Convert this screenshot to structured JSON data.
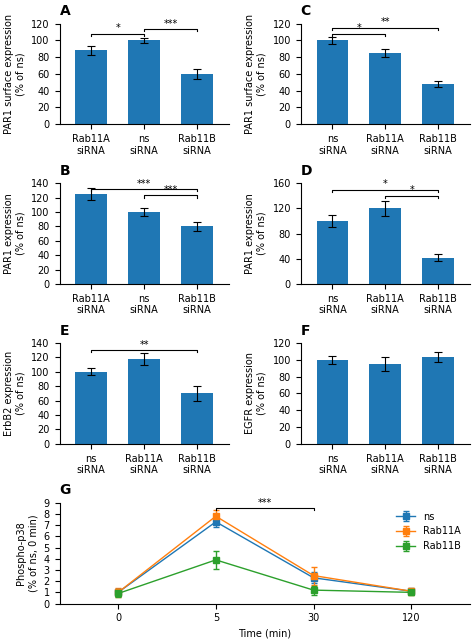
{
  "chart_data": [
    {
      "type": "bar",
      "title": "A",
      "y_label": "PAR1 surface expression\n(% of ns)",
      "categories": [
        "Rab11A\nsiRNA",
        "ns\nsiRNA",
        "Rab11B\nsiRNA"
      ],
      "values": [
        88,
        100,
        60
      ],
      "errors": [
        5,
        3,
        6
      ],
      "ylim": [
        0,
        120
      ],
      "yticks": [
        0,
        20,
        40,
        60,
        80,
        100,
        120
      ],
      "annotations": [
        {
          "text": "*",
          "from": "Rab11A\nsiRNA",
          "to": "ns\nsiRNA",
          "y": 108
        },
        {
          "text": "***",
          "from": "ns\nsiRNA",
          "to": "Rab11B\nsiRNA",
          "y": 113
        }
      ]
    },
    {
      "type": "bar",
      "title": "C",
      "y_label": "PAR1 surface expression\n(% of ns)",
      "categories": [
        "ns\nsiRNA",
        "Rab11A\nsiRNA",
        "Rab11B\nsiRNA"
      ],
      "values": [
        100,
        85,
        48
      ],
      "errors": [
        4,
        5,
        4
      ],
      "ylim": [
        0,
        120
      ],
      "yticks": [
        0,
        20,
        40,
        60,
        80,
        100,
        120
      ],
      "annotations": [
        {
          "text": "*",
          "from": "ns\nsiRNA",
          "to": "Rab11A\nsiRNA",
          "y": 108
        },
        {
          "text": "**",
          "from": "ns\nsiRNA",
          "to": "Rab11B\nsiRNA",
          "y": 115
        }
      ]
    },
    {
      "type": "bar",
      "title": "B",
      "y_label": "PAR1 expression\n(% of ns)",
      "categories": [
        "Rab11A\nsiRNA",
        "ns\nsiRNA",
        "Rab11B\nsiRNA"
      ],
      "values": [
        125,
        100,
        80
      ],
      "errors": [
        8,
        5,
        6
      ],
      "ylim": [
        0,
        140
      ],
      "yticks": [
        0,
        20,
        40,
        60,
        80,
        100,
        120,
        140
      ],
      "annotations": [
        {
          "text": "***",
          "from": "Rab11A\nsiRNA",
          "to": "Rab11B\nsiRNA",
          "y": 132
        },
        {
          "text": "***",
          "from": "ns\nsiRNA",
          "to": "Rab11B\nsiRNA",
          "y": 123
        }
      ]
    },
    {
      "type": "bar",
      "title": "D",
      "y_label": "PAR1 expression\n(% of ns)",
      "categories": [
        "ns\nsiRNA",
        "Rab11A\nsiRNA",
        "Rab11B\nsiRNA"
      ],
      "values": [
        100,
        120,
        42
      ],
      "errors": [
        10,
        12,
        5
      ],
      "ylim": [
        0,
        160
      ],
      "yticks": [
        0,
        40,
        80,
        120,
        160
      ],
      "annotations": [
        {
          "text": "*",
          "from": "ns\nsiRNA",
          "to": "Rab11B\nsiRNA",
          "y": 150
        },
        {
          "text": "*",
          "from": "Rab11A\nsiRNA",
          "to": "Rab11B\nsiRNA",
          "y": 140
        }
      ]
    },
    {
      "type": "bar",
      "title": "E",
      "y_label": "ErbB2 expression\n(% of ns)",
      "categories": [
        "ns\nsiRNA",
        "Rab11A\nsiRNA",
        "Rab11B\nsiRNA"
      ],
      "values": [
        100,
        118,
        70
      ],
      "errors": [
        5,
        8,
        10
      ],
      "ylim": [
        0,
        140
      ],
      "yticks": [
        0,
        20,
        40,
        60,
        80,
        100,
        120,
        140
      ],
      "annotations": [
        {
          "text": "**",
          "from": "ns\nsiRNA",
          "to": "Rab11B\nsiRNA",
          "y": 130
        }
      ]
    },
    {
      "type": "bar",
      "title": "F",
      "y_label": "EGFR expression\n(% of ns)",
      "categories": [
        "ns\nsiRNA",
        "Rab11A\nsiRNA",
        "Rab11B\nsiRNA"
      ],
      "values": [
        100,
        95,
        103
      ],
      "errors": [
        5,
        8,
        6
      ],
      "ylim": [
        0,
        120
      ],
      "yticks": [
        0,
        20,
        40,
        60,
        80,
        100,
        120
      ]
    },
    {
      "type": "line",
      "title": "G",
      "x_label": "Time (min)",
      "y_label": "Phospho-p38\n(% of ns, 0 min)",
      "categories": [
        "0",
        "5",
        "30",
        "120"
      ],
      "series": [
        {
          "name": "ns",
          "values": [
            1.0,
            7.3,
            2.3,
            1.1
          ],
          "errors": [
            0.3,
            0.5,
            0.5,
            0.2
          ],
          "marker": "square",
          "line_style": "solid"
        },
        {
          "name": "Rab11A",
          "values": [
            1.0,
            7.8,
            2.5,
            1.1
          ],
          "errors": [
            0.4,
            0.6,
            0.8,
            0.3
          ],
          "marker": "square",
          "line_style": "solid"
        },
        {
          "name": "Rab11B",
          "values": [
            0.9,
            3.9,
            1.2,
            1.0
          ],
          "errors": [
            0.3,
            0.8,
            0.4,
            0.2
          ],
          "marker": "square",
          "line_style": "solid"
        }
      ],
      "ylim": [
        0,
        9
      ],
      "yticks": [
        0,
        1,
        2,
        3,
        4,
        5,
        6,
        7,
        8,
        9
      ],
      "legend": "upper right",
      "annotations": [
        {
          "text": "***",
          "from": "5",
          "to": "30",
          "y": 8.5
        }
      ]
    }
  ]
}
